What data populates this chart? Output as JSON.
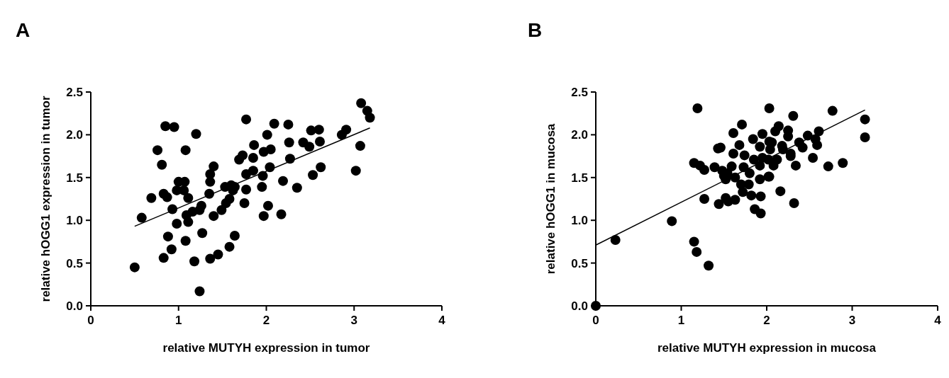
{
  "chart_data": [
    {
      "type": "scatter",
      "title": "A",
      "xlabel": "relative MUTYH expression in tumor",
      "ylabel": "relative hOGG1 expression in tumor",
      "xlim": [
        0,
        4
      ],
      "xticks": [
        0,
        1,
        2,
        3,
        4
      ],
      "ylim": [
        0,
        2.5
      ],
      "yticks": [
        {
          "value": 0,
          "label": "0.0"
        },
        {
          "value": 0.5,
          "label": "0.5"
        },
        {
          "value": 1,
          "label": "1.0"
        },
        {
          "value": 1.5,
          "label": "1.5"
        },
        {
          "value": 2,
          "label": "2.0"
        },
        {
          "value": 2.5,
          "label": "2.5"
        }
      ],
      "grid": false,
      "series": [
        {
          "marker": "circle",
          "color": "#000000",
          "x": [
            0.5,
            0.58,
            0.85,
            0.95,
            1.2,
            1.77,
            0.76,
            1.08,
            0.81,
            0.69,
            0.83,
            0.87,
            1.0,
            1.07,
            0.98,
            1.06,
            1.11,
            0.93,
            0.98,
            1.11,
            1.09,
            1.16,
            1.24,
            1.26,
            1.35,
            1.36,
            1.36,
            1.4,
            1.4,
            1.49,
            1.54,
            1.58,
            1.53,
            1.6,
            1.62,
            1.64,
            1.69,
            1.73,
            1.85,
            1.86,
            1.77,
            1.85,
            1.77,
            1.75,
            0.88,
            1.08,
            0.92,
            0.83,
            1.27,
            1.64,
            1.58,
            1.45,
            1.36,
            1.18,
            1.24,
            3.08,
            3.15,
            3.18,
            2.09,
            2.25,
            2.01,
            2.26,
            2.51,
            2.6,
            2.42,
            2.49,
            2.61,
            2.86,
            2.91,
            3.07,
            1.97,
            2.05,
            2.27,
            2.04,
            1.96,
            1.95,
            2.19,
            2.35,
            2.53,
            2.62,
            3.02,
            2.02,
            1.97,
            2.17
          ],
          "values": [
            0.45,
            1.03,
            2.1,
            2.09,
            2.01,
            2.18,
            1.82,
            1.82,
            1.65,
            1.26,
            1.31,
            1.27,
            1.45,
            1.45,
            1.35,
            1.35,
            1.26,
            1.13,
            0.96,
            0.98,
            1.06,
            1.1,
            1.12,
            1.17,
            1.31,
            1.45,
            1.54,
            1.63,
            1.05,
            1.12,
            1.2,
            1.25,
            1.39,
            1.41,
            1.35,
            1.39,
            1.71,
            1.76,
            1.73,
            1.88,
            1.54,
            1.58,
            1.36,
            1.2,
            0.81,
            0.76,
            0.66,
            0.56,
            0.85,
            0.82,
            0.69,
            0.6,
            0.55,
            0.52,
            0.17,
            2.37,
            2.28,
            2.2,
            2.13,
            2.12,
            2.0,
            1.91,
            2.05,
            2.06,
            1.91,
            1.86,
            1.92,
            2.0,
            2.06,
            1.87,
            1.8,
            1.83,
            1.72,
            1.62,
            1.52,
            1.39,
            1.46,
            1.38,
            1.53,
            1.62,
            1.58,
            1.17,
            1.05,
            1.07
          ]
        },
        {
          "type": "line",
          "color": "#000000",
          "x": [
            0.5,
            3.18
          ],
          "values": [
            0.93,
            2.08
          ]
        }
      ]
    },
    {
      "type": "scatter",
      "title": "B",
      "xlabel": "relative MUTYH expression in mucosa",
      "ylabel": "relative hOGG1 in mucosa",
      "xlim": [
        0,
        4
      ],
      "xticks": [
        0,
        1,
        2,
        3,
        4
      ],
      "ylim": [
        0,
        2.5
      ],
      "yticks": [
        {
          "value": 0,
          "label": "0.0"
        },
        {
          "value": 0.5,
          "label": "0.5"
        },
        {
          "value": 1,
          "label": "1.0"
        },
        {
          "value": 1.5,
          "label": "1.5"
        },
        {
          "value": 2,
          "label": "2.0"
        },
        {
          "value": 2.5,
          "label": "2.5"
        }
      ],
      "grid": false,
      "series": [
        {
          "marker": "circle",
          "color": "#000000",
          "x": [
            0,
            1.19,
            0.23,
            0.89,
            1.15,
            1.18,
            1.32,
            1.27,
            1.15,
            1.22,
            1.27,
            1.43,
            1.46,
            1.39,
            1.48,
            1.5,
            1.54,
            1.52,
            1.59,
            1.61,
            1.71,
            1.68,
            1.61,
            1.74,
            1.84,
            1.95,
            1.92,
            2.03,
            1.63,
            1.73,
            1.8,
            1.85,
            1.95,
            1.92,
            1.92,
            2.02,
            1.7,
            1.79,
            1.44,
            1.52,
            1.55,
            1.63,
            1.72,
            1.82,
            1.93,
            1.86,
            1.93,
            2.03,
            2.31,
            2.77,
            3.15,
            3.15,
            2.14,
            2.1,
            2.25,
            2.25,
            2.48,
            2.61,
            2.38,
            2.42,
            2.57,
            2.59,
            2.06,
            2.18,
            2.04,
            2.19,
            2.28,
            2.28,
            2.12,
            2.02,
            2.08,
            2.34,
            2.54,
            2.72,
            2.89,
            2.03,
            2.16,
            2.32
          ],
          "values": [
            0,
            2.31,
            0.77,
            0.99,
            0.75,
            0.63,
            0.47,
            1.25,
            1.67,
            1.64,
            1.59,
            1.84,
            1.85,
            1.62,
            1.58,
            1.52,
            1.55,
            1.48,
            1.63,
            2.02,
            2.12,
            1.88,
            1.78,
            1.76,
            1.95,
            2.01,
            1.86,
            1.92,
            1.5,
            1.62,
            1.55,
            1.71,
            1.73,
            1.64,
            1.48,
            1.51,
            1.42,
            1.42,
            1.19,
            1.26,
            1.22,
            1.24,
            1.33,
            1.29,
            1.28,
            1.13,
            1.08,
            2.31,
            2.22,
            2.28,
            2.18,
            1.97,
            2.1,
            2.04,
            2.05,
            1.98,
            1.99,
            2.04,
            1.91,
            1.85,
            1.95,
            1.88,
            1.91,
            1.87,
            1.83,
            1.83,
            1.78,
            1.75,
            1.71,
            1.71,
            1.64,
            1.64,
            1.73,
            1.63,
            1.67,
            1.51,
            1.34,
            1.2
          ]
        },
        {
          "type": "line",
          "color": "#000000",
          "x": [
            0,
            3.15
          ],
          "values": [
            0.71,
            2.29
          ]
        }
      ]
    }
  ]
}
